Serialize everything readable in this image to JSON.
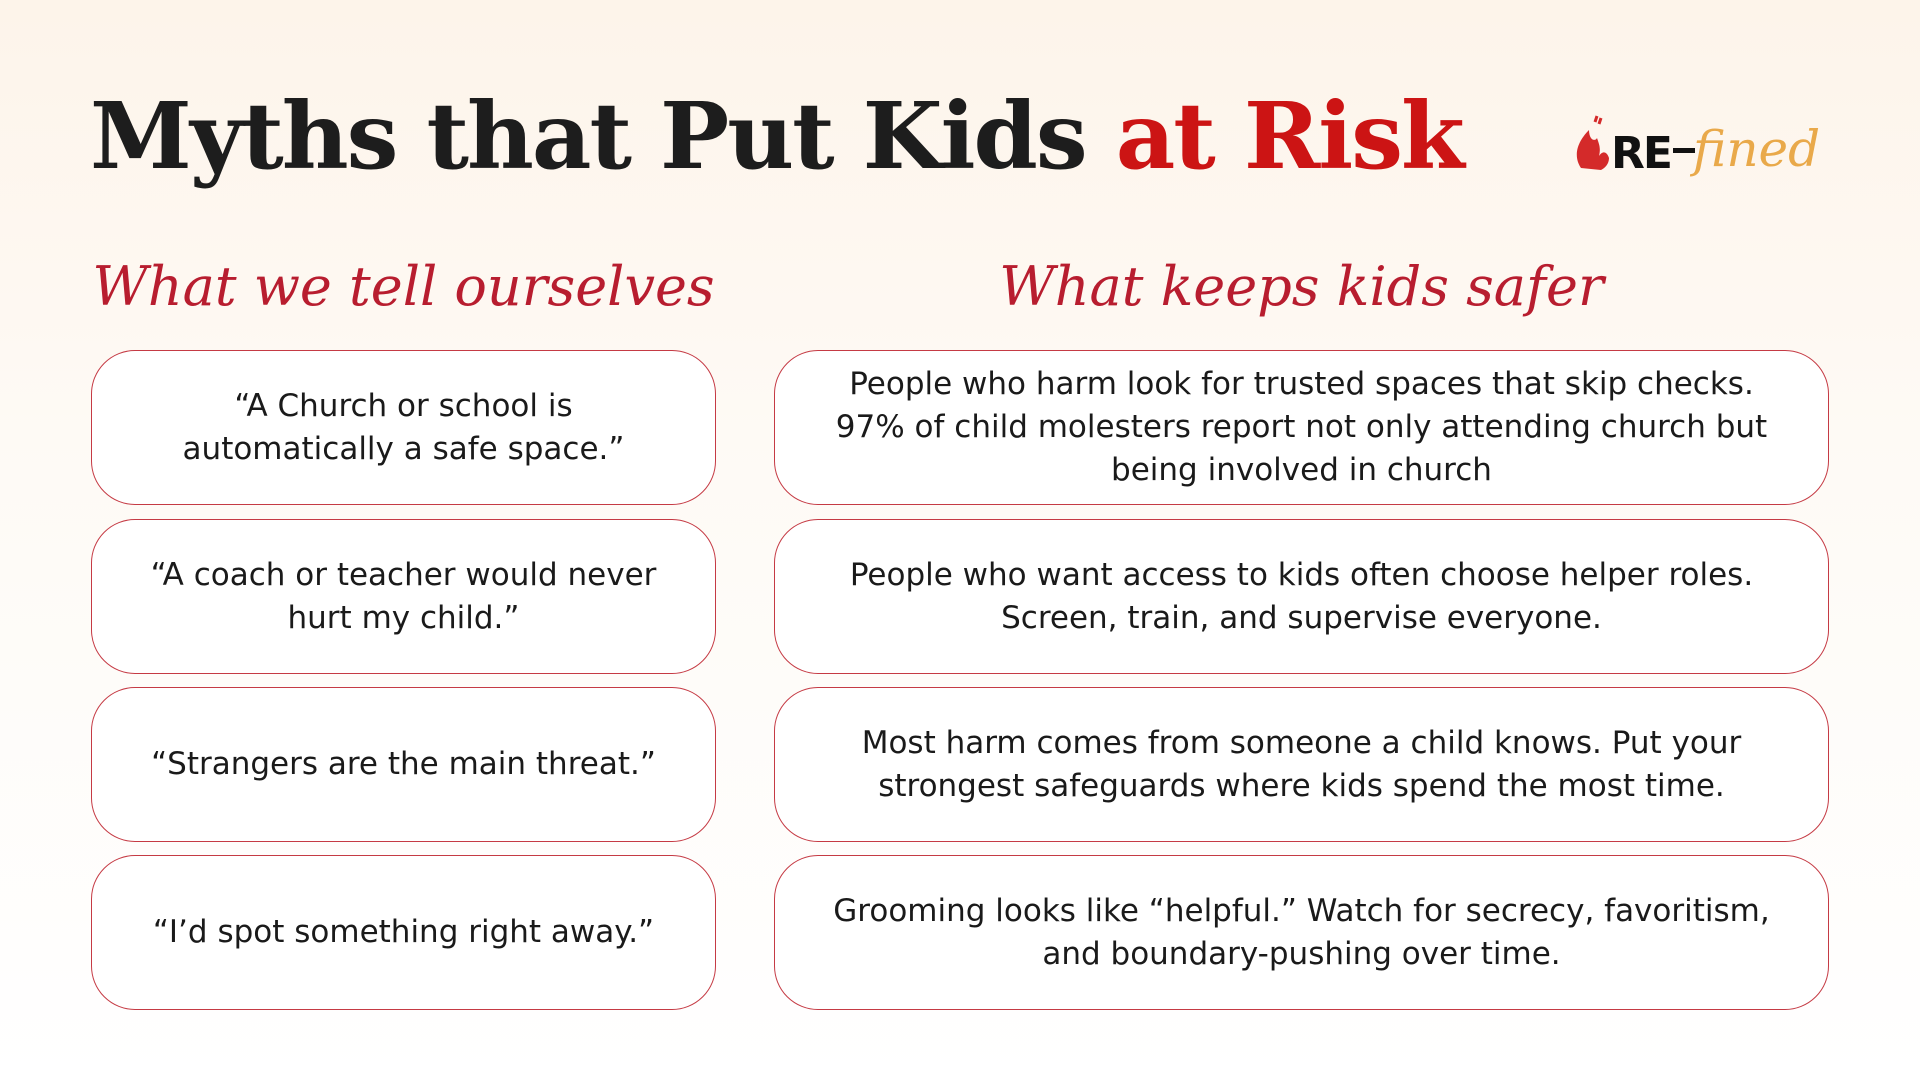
{
  "title": {
    "main": "Myths that Put Kids ",
    "accent": "at Risk"
  },
  "logo": {
    "text": "RE-fined",
    "icon": "flame-heart-icon"
  },
  "colors": {
    "accent": "#cc1414",
    "heading": "#b81d2f",
    "border": "#c53a44",
    "logo_gold": "#e9a94a"
  },
  "columns": {
    "left_heading": "What we tell ourselves",
    "right_heading": "What keeps kids safer"
  },
  "rows": [
    {
      "myth": "“A Church or school is automatically a safe space.”",
      "fact": "People who harm look for trusted spaces that skip checks. 97% of child molesters report not only attending church but being involved in church"
    },
    {
      "myth": "“A coach or teacher would never hurt my child.”",
      "fact": "People who want access to kids often choose helper roles. Screen, train, and supervise everyone."
    },
    {
      "myth": "“Strangers are the main threat.”",
      "fact": "Most harm comes from someone a child knows. Put your strongest safeguards where kids spend the most time."
    },
    {
      "myth": "“I’d spot something right away.”",
      "fact": "Grooming looks like “helpful.” Watch for secrecy, favoritism, and boundary-pushing over time."
    }
  ]
}
